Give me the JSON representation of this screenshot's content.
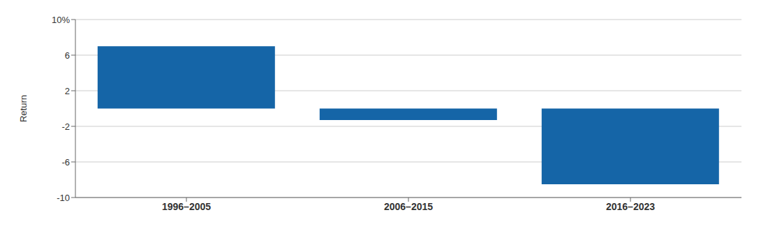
{
  "chart_data": {
    "type": "bar",
    "categories": [
      "1996–2005",
      "2006–2015",
      "2016–2023"
    ],
    "values": [
      7.0,
      -1.3,
      -8.5
    ],
    "color": "#1565a7",
    "ylabel": "Return",
    "ylim": [
      -10,
      10
    ],
    "yticks": [
      -10,
      -6,
      -2,
      2,
      6,
      {
        "value": 10,
        "label": "10%"
      }
    ],
    "grid": true
  }
}
